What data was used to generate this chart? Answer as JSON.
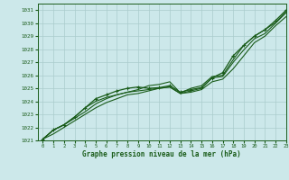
{
  "title": "Graphe pression niveau de la mer (hPa)",
  "bg_color": "#cce8ea",
  "grid_color": "#aacccc",
  "line_color": "#1a5c1a",
  "xlim": [
    -0.5,
    23
  ],
  "ylim": [
    1021,
    1031.5
  ],
  "xticks": [
    0,
    1,
    2,
    3,
    4,
    5,
    6,
    7,
    8,
    9,
    10,
    11,
    12,
    13,
    14,
    15,
    16,
    17,
    18,
    19,
    20,
    21,
    22,
    23
  ],
  "yticks": [
    1021,
    1022,
    1023,
    1024,
    1025,
    1026,
    1027,
    1028,
    1029,
    1030,
    1031
  ],
  "series": [
    {
      "values": [
        1021.1,
        1021.8,
        1022.2,
        1022.8,
        1023.5,
        1024.2,
        1024.5,
        1024.8,
        1025.0,
        1025.1,
        1025.0,
        1025.05,
        1025.2,
        1024.7,
        1024.9,
        1025.05,
        1025.8,
        1026.2,
        1027.5,
        1028.3,
        1029.0,
        1029.5,
        1030.2,
        1031.0
      ],
      "marker": true,
      "lw": 0.9
    },
    {
      "values": [
        1021.1,
        1021.8,
        1022.2,
        1022.8,
        1023.5,
        1024.0,
        1024.3,
        1024.5,
        1024.7,
        1024.9,
        1025.2,
        1025.3,
        1025.5,
        1024.65,
        1025.0,
        1025.2,
        1025.9,
        1026.0,
        1027.2,
        1028.3,
        1029.0,
        1029.5,
        1030.05,
        1030.9
      ],
      "marker": false,
      "lw": 0.8
    },
    {
      "values": [
        1021.1,
        1021.8,
        1022.2,
        1022.7,
        1023.2,
        1023.8,
        1024.2,
        1024.5,
        1024.7,
        1024.8,
        1024.9,
        1025.0,
        1025.1,
        1024.6,
        1024.8,
        1025.0,
        1025.8,
        1025.9,
        1027.0,
        1027.95,
        1028.8,
        1029.2,
        1030.0,
        1030.8
      ],
      "marker": false,
      "lw": 0.8
    },
    {
      "values": [
        1021.1,
        1021.5,
        1022.0,
        1022.5,
        1023.0,
        1023.5,
        1023.9,
        1024.2,
        1024.5,
        1024.6,
        1024.8,
        1025.0,
        1025.1,
        1024.6,
        1024.7,
        1024.9,
        1025.5,
        1025.7,
        1026.5,
        1027.5,
        1028.5,
        1029.0,
        1029.8,
        1030.5
      ],
      "marker": false,
      "lw": 0.8
    }
  ]
}
